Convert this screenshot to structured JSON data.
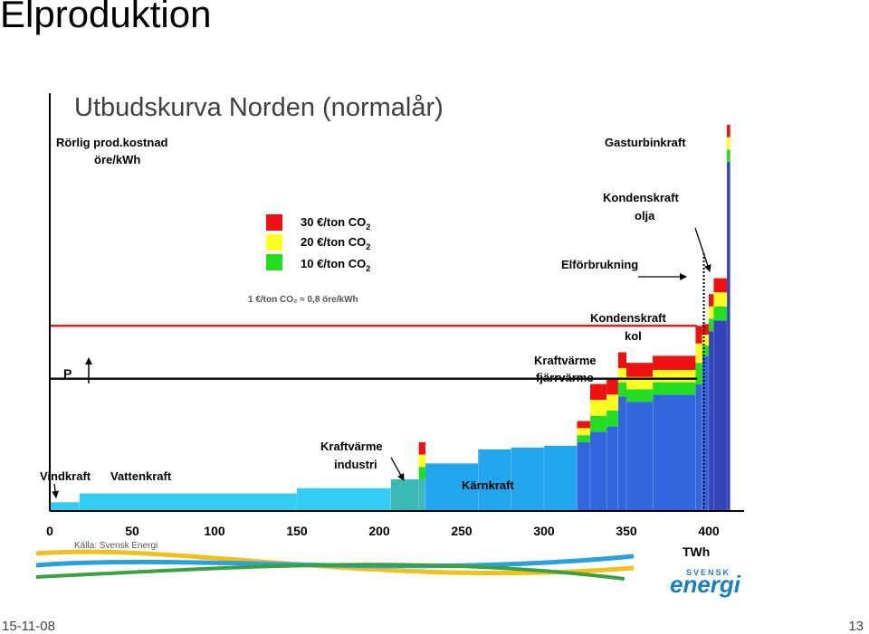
{
  "slide": {
    "title": "Elproduktion",
    "date": "15-11-08",
    "page": "13"
  },
  "chart_data": {
    "type": "bar",
    "title": "Utbudskurva Norden (normalår)",
    "ylabel_line1": "Rörlig prod.kostnad",
    "ylabel_line2": "öre/kWh",
    "xlabel": "TWh",
    "xlim": [
      0,
      420
    ],
    "x_ticks": [
      0,
      50,
      100,
      150,
      200,
      250,
      300,
      350,
      400
    ],
    "ylim": [
      0,
      23
    ],
    "grid": false,
    "legend_position": "top-left",
    "legend": [
      {
        "label": "30  €/ton CO",
        "sub": "2",
        "color": "#ee1111"
      },
      {
        "label": "20  €/ton CO",
        "sub": "2",
        "color": "#ffff22"
      },
      {
        "label": "10  €/ton CO",
        "sub": "2",
        "color": "#22dd22"
      }
    ],
    "conversion_note": "1 €/ton CO₂ ≈ 0,8 öre/kWh",
    "colors": {
      "vatten": "#33ccf2",
      "vatten_edge": "#1aaed8",
      "industri": "#3ab8b8",
      "karn": "#22a6ee",
      "fossil": "#3366dd",
      "gas": "#3344bb",
      "demand_high": "#dd2222",
      "demand_low": "#111111",
      "co2_30": "#ee1111",
      "co2_20": "#ffff22",
      "co2_10": "#22dd22"
    },
    "demand_lines": {
      "high_price": 10.5,
      "low_price": 7.5,
      "consumption_twh": 397
    },
    "price_arrow_label": "P",
    "source": "Källa: Svensk Energi",
    "logo_text": "energi",
    "logo_small_text": "SVENSK",
    "segments": [
      {
        "name": "Vindkraft",
        "x0": 0,
        "x1": 18,
        "y": 0.5,
        "series": "vatten"
      },
      {
        "name": "Vattenkraft",
        "x0": 18,
        "x1": 150,
        "y": 1.0,
        "series": "vatten"
      },
      {
        "name": "Vattenkraft",
        "x0": 150,
        "x1": 207,
        "y": 1.3,
        "series": "vatten"
      },
      {
        "name": "Kraftvärme industri",
        "x0": 207,
        "x1": 224,
        "y": 1.8,
        "series": "industri"
      },
      {
        "name": "Kraftvärme industri",
        "x0": 224,
        "x1": 228,
        "y": 1.8,
        "series": "industri",
        "co2": [
          0.7,
          0.7,
          0.7
        ]
      },
      {
        "name": "Kärnkraft",
        "x0": 228,
        "x1": 260,
        "y": 2.7,
        "series": "karn"
      },
      {
        "name": "Kärnkraft",
        "x0": 260,
        "x1": 280,
        "y": 3.5,
        "series": "karn"
      },
      {
        "name": "Kärnkraft",
        "x0": 280,
        "x1": 300,
        "y": 3.6,
        "series": "karn"
      },
      {
        "name": "Kärnkraft",
        "x0": 300,
        "x1": 320,
        "y": 3.7,
        "series": "karn"
      },
      {
        "name": "Kraftvärme fjärrvärme",
        "x0": 320,
        "x1": 328,
        "y": 3.9,
        "series": "fossil",
        "co2": [
          0.4,
          0.4,
          0.4
        ]
      },
      {
        "name": "Kraftvärme fjärrvärme",
        "x0": 328,
        "x1": 338,
        "y": 4.5,
        "series": "fossil",
        "co2": [
          0.9,
          0.9,
          0.9
        ]
      },
      {
        "name": "Kraftvärme fjärrvärme",
        "x0": 338,
        "x1": 345,
        "y": 4.8,
        "series": "fossil",
        "co2": [
          0.9,
          0.9,
          0.9
        ]
      },
      {
        "name": "Kraftvärme fjärrvärme",
        "x0": 345,
        "x1": 350,
        "y": 6.5,
        "series": "fossil",
        "co2": [
          0.8,
          0.8,
          0.9
        ]
      },
      {
        "name": "Kraftvärme fjärrvärme",
        "x0": 350,
        "x1": 366,
        "y": 6.2,
        "series": "fossil",
        "co2": [
          0.7,
          0.7,
          0.8
        ]
      },
      {
        "name": "Kraftvärme fjärrvärme",
        "x0": 366,
        "x1": 392,
        "y": 6.6,
        "series": "fossil",
        "co2": [
          0.7,
          0.7,
          0.8
        ]
      },
      {
        "name": "Kondenskraft kol",
        "x0": 392,
        "x1": 396,
        "y": 7.2,
        "series": "fossil",
        "co2": [
          1.2,
          1.1,
          1.0
        ]
      },
      {
        "name": "Kondenskraft kol",
        "x0": 396,
        "x1": 400,
        "y": 8.8,
        "series": "fossil",
        "co2": [
          0.6,
          0.6,
          0.6
        ]
      },
      {
        "name": "Kondenskraft olja",
        "x0": 400,
        "x1": 403,
        "y": 10.2,
        "series": "gas",
        "co2": [
          0.7,
          0.7,
          0.7
        ]
      },
      {
        "name": "Kondenskraft olja",
        "x0": 403,
        "x1": 411,
        "y": 10.8,
        "series": "gas",
        "co2": [
          0.8,
          0.8,
          0.8
        ]
      },
      {
        "name": "Gasturbinkraft",
        "x0": 411,
        "x1": 413,
        "y": 19.8,
        "series": "gas",
        "co2": [
          0.7,
          0.7,
          0.7
        ]
      }
    ],
    "labels": {
      "vindkraft": "Vindkraft",
      "vattenkraft": "Vattenkraft",
      "kraftvarme_industri_1": "Kraftvärme",
      "kraftvarme_industri_2": "industri",
      "karnkraft": "Kärnkraft",
      "kraftvarme_fjarr_1": "Kraftvärme",
      "kraftvarme_fjarr_2": "fjärrvärme",
      "kondens_kol_1": "Kondenskraft",
      "kondens_kol_2": "kol",
      "elforbrukning": "Elförbrukning",
      "kondens_olja_1": "Kondenskraft",
      "kondens_olja_2": "olja",
      "gasturbin": "Gasturbinkraft"
    }
  }
}
